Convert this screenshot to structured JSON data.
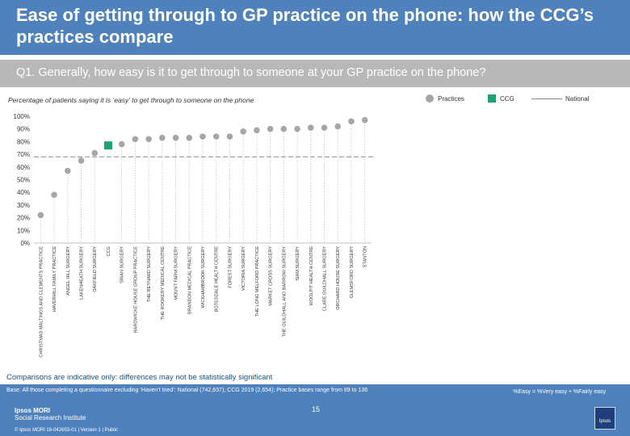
{
  "header": {
    "title": "Ease of getting through to GP practice on the phone: how the CCG’s practices compare",
    "question": "Q1. Generally, how easy is it to get through to someone at your GP practice on the phone?"
  },
  "legend": {
    "practices": "Practices",
    "ccg": "CCG",
    "national": "National"
  },
  "chart_data": {
    "type": "scatter",
    "title": "Percentage of patients saying it is ‘easy’ to get through to someone on the phone",
    "ylim": [
      0,
      100
    ],
    "yticks": [
      "0%",
      "10%",
      "20%",
      "30%",
      "40%",
      "50%",
      "60%",
      "70%",
      "80%",
      "90%",
      "100%"
    ],
    "national_value": 68,
    "categories": [
      "CHRISTMAS MALTINGS AND CLEMENTS PRACTICE",
      "HAVERHILL FAMILY PRACTICE",
      "ANGEL HILL SURGERY",
      "LAKENHEATH SURGERY",
      "OAKFIELD SURGERY",
      "CCG",
      "SWAN SURGERY",
      "HARDWICKE HOUSE GROUP PRACTICE",
      "THE REYNARD SURGERY",
      "THE ROOKERY MEDICAL CENTRE",
      "MOUNT FARM SURGERY",
      "BRANDON MEDICAL PRACTICE",
      "WICKHAMBROOK SURGERY",
      "BOTESDALE HEALTH CENTRE",
      "FOREST SURGERY",
      "VICTORIA SURGERY",
      "THE LONG MELFORD PRACTICE",
      "MARKET CROSS SURGERY",
      "THE GUILDHALL AND BARROW SURGERY",
      "SIAM SURGERY",
      "WOOLPIT HEALTH CENTRE",
      "CLARE GUILDHALL SURGERY",
      "ORCHARD HOUSE SURGERY",
      "GLEMSFORD SURGERY",
      "STANTON"
    ],
    "values": [
      22,
      38,
      57,
      65,
      71,
      77,
      78,
      82,
      82,
      83,
      83,
      83,
      84,
      84,
      84,
      88,
      89,
      90,
      90,
      90,
      91,
      91,
      92,
      96,
      97
    ],
    "ccg_index": 5
  },
  "notes": {
    "comparisons": "Comparisons are indicative only: differences may not be statistically significant",
    "base": "Base: All those completing a questionnaire excluding ‘Haven’t tried’: National (742,637); CCG 2019 (2,654); Practice bases range from 89 to 136",
    "formula": "%Easy = %Very easy + %Fairly easy"
  },
  "footer": {
    "logo_name": "Ipsos MORI",
    "logo_sub": "Social Research Institute",
    "copyright": "© Ipsos MORI      18-042653-01 | Version 1 | Public",
    "page": "15",
    "badge": "Ipsos"
  },
  "colors": {
    "header_blue": "#4f81bd",
    "question_grey": "#b8b8b8",
    "practice_dot": "#a6a6a6",
    "ccg_square": "#1aa37a",
    "national_line": "#888888"
  }
}
